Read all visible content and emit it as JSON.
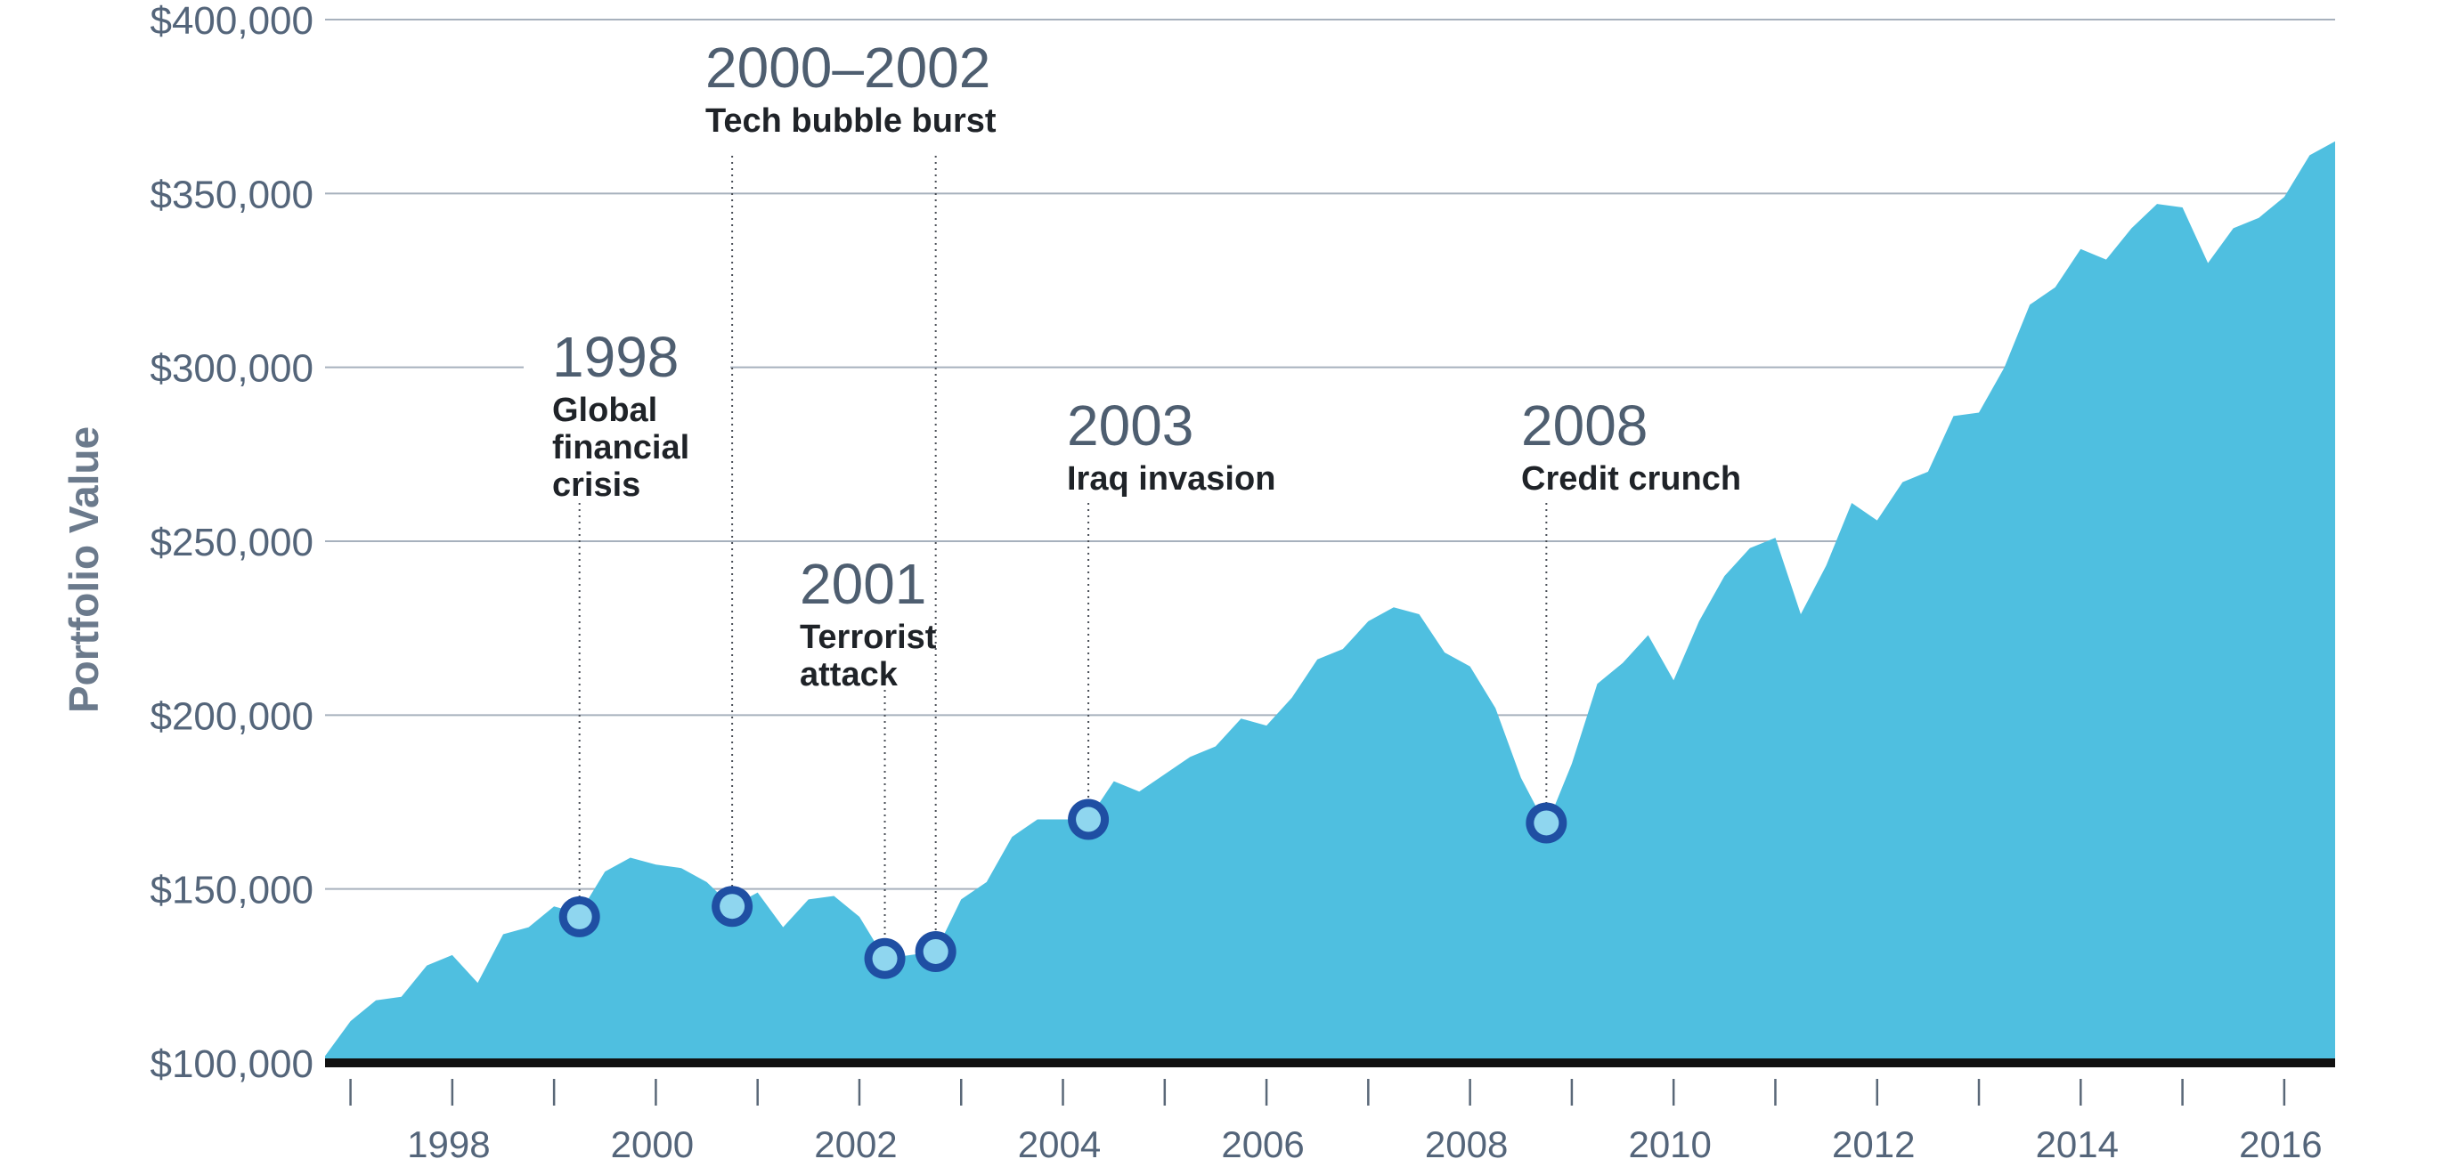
{
  "chart_data": {
    "type": "area",
    "title": "",
    "xlabel": "",
    "ylabel": "Portfolio Value",
    "grid": true,
    "xlim": [
      1997.0,
      2016.75
    ],
    "ylim": [
      100000,
      400000
    ],
    "y_ticks": [
      {
        "value": 100000,
        "label": "$100,000"
      },
      {
        "value": 150000,
        "label": "$150,000"
      },
      {
        "value": 200000,
        "label": "$200,000"
      },
      {
        "value": 250000,
        "label": "$250,000"
      },
      {
        "value": 300000,
        "label": "$300,000"
      },
      {
        "value": 350000,
        "label": "$350,000"
      },
      {
        "value": 400000,
        "label": "$400,000"
      }
    ],
    "x_tick_labels": [
      {
        "value": 1998,
        "label": "1998"
      },
      {
        "value": 2000,
        "label": "2000"
      },
      {
        "value": 2002,
        "label": "2002"
      },
      {
        "value": 2004,
        "label": "2004"
      },
      {
        "value": 2006,
        "label": "2006"
      },
      {
        "value": 2008,
        "label": "2008"
      },
      {
        "value": 2010,
        "label": "2010"
      },
      {
        "value": 2012,
        "label": "2012"
      },
      {
        "value": 2014,
        "label": "2014"
      },
      {
        "value": 2016,
        "label": "2016"
      }
    ],
    "series": [
      {
        "color": "#4fbfe0",
        "x": [
          1997.0,
          1997.25,
          1997.5,
          1997.75,
          1998.0,
          1998.25,
          1998.5,
          1998.75,
          1999.0,
          1999.25,
          1999.5,
          1999.75,
          2000.0,
          2000.25,
          2000.5,
          2000.75,
          2001.0,
          2001.25,
          2001.5,
          2001.75,
          2002.0,
          2002.25,
          2002.5,
          2002.75,
          2003.0,
          2003.25,
          2003.5,
          2003.75,
          2004.0,
          2004.25,
          2004.5,
          2004.75,
          2005.0,
          2005.25,
          2005.5,
          2005.75,
          2006.0,
          2006.25,
          2006.5,
          2006.75,
          2007.0,
          2007.25,
          2007.5,
          2007.75,
          2008.0,
          2008.25,
          2008.5,
          2008.75,
          2009.0,
          2009.25,
          2009.5,
          2009.75,
          2010.0,
          2010.25,
          2010.5,
          2010.75,
          2011.0,
          2011.25,
          2011.5,
          2011.75,
          2012.0,
          2012.25,
          2012.5,
          2012.75,
          2013.0,
          2013.25,
          2013.5,
          2013.75,
          2014.0,
          2014.25,
          2014.5,
          2014.75,
          2015.0,
          2015.25,
          2015.5,
          2015.75,
          2016.0,
          2016.25,
          2016.5,
          2016.75
        ],
        "values": [
          102000,
          112000,
          118000,
          119000,
          128000,
          131000,
          123000,
          137000,
          139000,
          145000,
          143000,
          155000,
          159000,
          157000,
          156000,
          152000,
          145000,
          149000,
          139000,
          147000,
          148000,
          142000,
          130000,
          131000,
          132000,
          147000,
          152000,
          165000,
          170000,
          170000,
          170000,
          181000,
          178000,
          183000,
          188000,
          191000,
          199000,
          197000,
          205000,
          216000,
          219000,
          227000,
          231000,
          229000,
          218000,
          214000,
          202000,
          182000,
          168000,
          186000,
          209000,
          215000,
          223000,
          210000,
          227000,
          240000,
          248000,
          251000,
          229000,
          243000,
          261000,
          256000,
          267000,
          270000,
          286000,
          287000,
          300000,
          318000,
          323000,
          334000,
          331000,
          340000,
          347000,
          346000,
          330000,
          340000,
          343000,
          349000,
          361000,
          365000
        ]
      }
    ],
    "annotations": [
      {
        "year": "1998",
        "lines": [
          "Global",
          "financial",
          "crisis"
        ],
        "x": 1999.5,
        "y": 142000
      },
      {
        "year": "2000–2002",
        "lines": [
          "Tech bubble burst"
        ],
        "x": 2001.0,
        "y": 145000
      },
      {
        "year": "2001",
        "lines": [
          "Terrorist",
          "attack"
        ],
        "x": 2002.5,
        "y": 130000
      },
      {
        "year": "",
        "lines": [],
        "x": 2003.0,
        "y": 132000
      },
      {
        "year": "2003",
        "lines": [
          "Iraq invasion"
        ],
        "x": 2004.5,
        "y": 170000
      },
      {
        "year": "2008",
        "lines": [
          "Credit crunch"
        ],
        "x": 2009.0,
        "y": 169000
      }
    ],
    "colors": {
      "area": "#4fbfe0",
      "grid": "#a7b1bd",
      "axis": "#111111",
      "marker_ring": "#1f4fa3",
      "marker_center": "#8fd6ef"
    }
  }
}
